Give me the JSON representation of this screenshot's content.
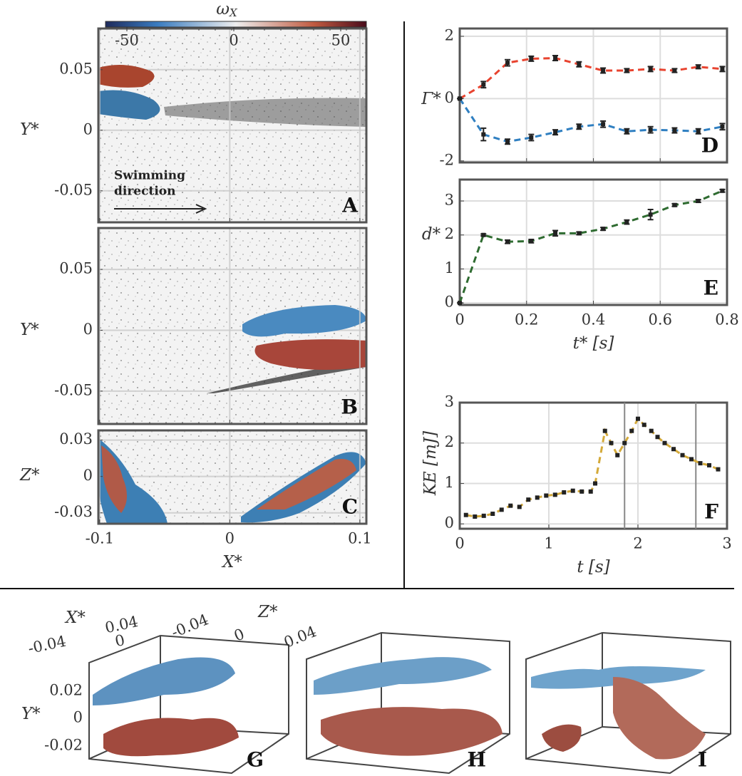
{
  "chart_data": [
    {
      "type": "image",
      "label": "A",
      "ylabel": "Y*",
      "xlim": [
        -0.101,
        0.105
      ],
      "xticks": [
        -0.1,
        0,
        0.1
      ],
      "ylim": [
        -0.076,
        0.084
      ],
      "yticks": [
        0.05,
        0,
        -0.05
      ],
      "grid": true,
      "colorbar": {
        "label": "ω",
        "label_sub": "X",
        "lim": [
          -60,
          62
        ],
        "ticks": [
          -50,
          0,
          50
        ]
      },
      "annotation": [
        "Swimming",
        "direction"
      ]
    },
    {
      "type": "image",
      "label": "B",
      "ylabel": "Y*",
      "xlim": [
        -0.101,
        0.105
      ],
      "xticks": [
        -0.1,
        0,
        0.1
      ],
      "ylim": [
        -0.077,
        0.084
      ],
      "yticks": [
        0.05,
        0,
        -0.05
      ],
      "grid": true
    },
    {
      "type": "image",
      "label": "C",
      "ylabel": "Z*",
      "xlabel": "X*",
      "xlim": [
        -0.101,
        0.105
      ],
      "xticks": [
        -0.1,
        0,
        0.1
      ],
      "ylim": [
        -0.039,
        0.038
      ],
      "yticks": [
        0.03,
        0,
        -0.03
      ],
      "grid": true,
      "xticklabels": true
    },
    {
      "type": "line",
      "label": "D",
      "ylabel": "Γ*",
      "xlim": [
        0,
        0.8
      ],
      "xticks": [
        0,
        0.2,
        0.4,
        0.6,
        0.8
      ],
      "ylim": [
        -2.05,
        2.25
      ],
      "yticks": [
        -2,
        0,
        2
      ],
      "grid": true,
      "x": [
        0,
        0.071,
        0.143,
        0.214,
        0.286,
        0.357,
        0.429,
        0.5,
        0.571,
        0.643,
        0.714,
        0.786
      ],
      "series": [
        {
          "color": "#e8432f",
          "values": [
            0,
            0.45,
            1.15,
            1.28,
            1.3,
            1.1,
            0.9,
            0.9,
            0.95,
            0.9,
            1.02,
            0.95
          ],
          "errors": [
            0,
            0.1,
            0.1,
            0.08,
            0.08,
            0.08,
            0.08,
            0.06,
            0.08,
            0.06,
            0.06,
            0.08
          ]
        },
        {
          "color": "#2f7fc1",
          "values": [
            0,
            -1.15,
            -1.38,
            -1.25,
            -1.08,
            -0.9,
            -0.82,
            -1.05,
            -1.0,
            -1.02,
            -1.05,
            -0.9
          ],
          "errors": [
            0,
            0.2,
            0.08,
            0.1,
            0.08,
            0.08,
            0.1,
            0.08,
            0.1,
            0.08,
            0.08,
            0.1
          ]
        }
      ]
    },
    {
      "type": "line",
      "label": "E",
      "ylabel": "d*",
      "xlabel": "t* [s]",
      "xticklabels": true,
      "xlim": [
        0,
        0.8
      ],
      "xticks": [
        0,
        0.2,
        0.4,
        0.6,
        0.8
      ],
      "ylim": [
        -0.06,
        3.63
      ],
      "yticks": [
        0,
        1,
        2,
        3
      ],
      "grid": true,
      "x": [
        0,
        0.071,
        0.143,
        0.214,
        0.286,
        0.357,
        0.429,
        0.5,
        0.571,
        0.643,
        0.714,
        0.786
      ],
      "series": [
        {
          "color": "#2e6b30",
          "values": [
            0,
            2.0,
            1.8,
            1.82,
            2.05,
            2.05,
            2.18,
            2.38,
            2.6,
            2.88,
            3.0,
            3.3
          ],
          "errors": [
            0,
            0.03,
            0.05,
            0.05,
            0.08,
            0.04,
            0.04,
            0.06,
            0.15,
            0.04,
            0.04,
            0.04
          ]
        }
      ]
    },
    {
      "type": "line",
      "label": "F",
      "ylabel": "KE [mJ]",
      "xlabel": "t [s]",
      "xticklabels": true,
      "xlim": [
        0,
        3
      ],
      "xticks": [
        0,
        1,
        2,
        3
      ],
      "ylim": [
        -0.12,
        3
      ],
      "yticks": [
        0,
        1,
        2,
        3
      ],
      "grid": true,
      "vlines": [
        1.85,
        2.65
      ],
      "x": [
        0.07,
        0.17,
        0.27,
        0.37,
        0.47,
        0.57,
        0.67,
        0.77,
        0.87,
        0.97,
        1.07,
        1.17,
        1.27,
        1.37,
        1.47,
        1.52,
        1.63,
        1.7,
        1.77,
        1.85,
        1.93,
        2.0,
        2.07,
        2.15,
        2.22,
        2.3,
        2.4,
        2.5,
        2.6,
        2.7,
        2.8,
        2.9
      ],
      "series": [
        {
          "color": "#d4aa3a",
          "values": [
            0.22,
            0.18,
            0.2,
            0.25,
            0.35,
            0.45,
            0.42,
            0.6,
            0.65,
            0.7,
            0.72,
            0.78,
            0.82,
            0.8,
            0.8,
            1.0,
            2.3,
            2.0,
            1.7,
            2.0,
            2.3,
            2.6,
            2.45,
            2.3,
            2.15,
            2.0,
            1.85,
            1.7,
            1.6,
            1.5,
            1.45,
            1.35
          ]
        }
      ]
    }
  ],
  "figure_3d": {
    "panels": [
      "G",
      "H",
      "I"
    ],
    "xlabel": "X*",
    "xticks": [
      "0.04",
      "0",
      "-0.04"
    ],
    "zlabel": "Z*",
    "zticks": [
      "-0.04",
      "0",
      "0.04"
    ],
    "ylabel": "Y*",
    "yticks": [
      "0.02",
      "0",
      "-0.02"
    ]
  }
}
